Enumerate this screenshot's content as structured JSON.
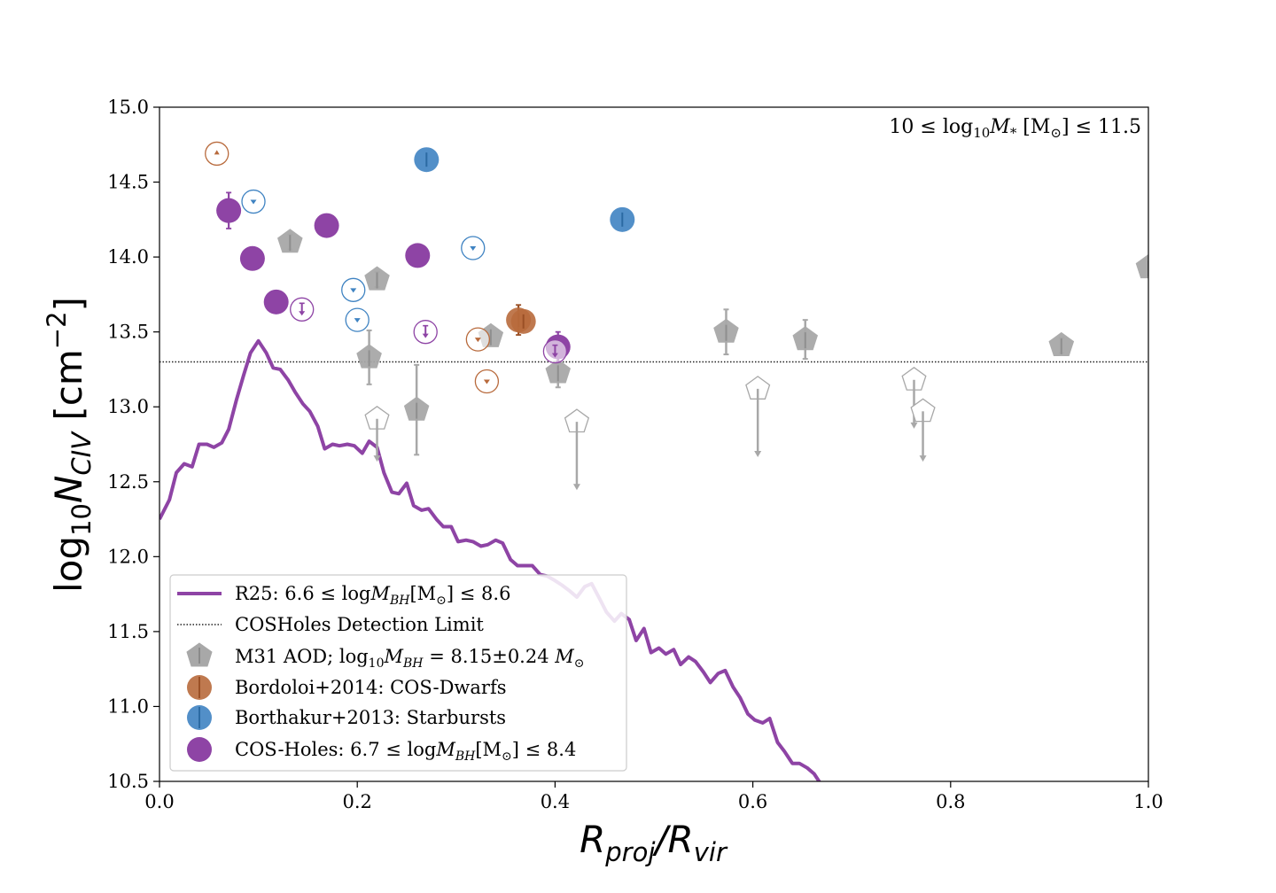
{
  "chart_data": {
    "type": "scatter",
    "xlim": [
      0.0,
      1.0
    ],
    "ylim": [
      10.5,
      15.0
    ],
    "x_ticks": [
      "0.0",
      "0.2",
      "0.4",
      "0.6",
      "0.8",
      "1.0"
    ],
    "y_ticks": [
      "10.5",
      "11.0",
      "11.5",
      "12.0",
      "12.5",
      "13.0",
      "13.5",
      "14.0",
      "14.5",
      "15.0"
    ],
    "xlabel_main": "R",
    "xlabel_sub1": "proj",
    "xlabel_mid": "/R",
    "xlabel_sub2": "vir",
    "ylabel_main": "log",
    "ylabel_sub1": "10",
    "ylabel_mid": "N",
    "ylabel_sub2": "CIV",
    "ylabel_unit": " [cm",
    "ylabel_sup": "−2",
    "ylabel_end": "]",
    "annotation": {
      "pre": "10  ≤  log",
      "sub1": "10",
      "mid": "M",
      "sub2": "*",
      "unit": " [M",
      "sub3": "⊙",
      "post": "]  ≤  11.5"
    },
    "detection_limit": 13.3,
    "colors": {
      "purple": "#8e44a5",
      "orange": "#b86a3c",
      "blue": "#3f83c2",
      "gray": "#a8a8a8"
    },
    "legend": {
      "placement": "lower-left",
      "entries": [
        {
          "pre": "R25: 6.6  ≤  log",
          "mid": "M",
          "sub": "BH",
          "unit": "[M",
          "sub2": "⊙",
          "post": "]  ≤  8.6"
        },
        {
          "pre": "COSHoles Detection Limit"
        },
        {
          "pre": "M31 AOD; log",
          "sub0": "10",
          "mid": "M",
          "sub": "BH",
          "post": " = 8.15±0.24 ",
          "mid2": "M",
          "sub2": "⊙"
        },
        {
          "pre": "Bordoloi+2014: COS-Dwarfs"
        },
        {
          "pre": "Borthakur+2013: Starbursts"
        },
        {
          "pre": "COS-Holes: 6.7  ≤  log",
          "mid": "M",
          "sub": "BH",
          "unit": "[M",
          "sub2": "⊙",
          "post": "]  ≤  8.4"
        }
      ]
    },
    "series": [
      {
        "name": "R25: 6.6 ≤ logM_BH[M⊙] ≤ 8.6",
        "kind": "line",
        "color": "#8e44a5",
        "points": [
          [
            0.0,
            12.25
          ],
          [
            0.01,
            12.38
          ],
          [
            0.017,
            12.56
          ],
          [
            0.025,
            12.62
          ],
          [
            0.033,
            12.6
          ],
          [
            0.04,
            12.75
          ],
          [
            0.048,
            12.75
          ],
          [
            0.055,
            12.73
          ],
          [
            0.063,
            12.76
          ],
          [
            0.07,
            12.85
          ],
          [
            0.078,
            13.05
          ],
          [
            0.085,
            13.21
          ],
          [
            0.092,
            13.36
          ],
          [
            0.1,
            13.44
          ],
          [
            0.108,
            13.36
          ],
          [
            0.115,
            13.26
          ],
          [
            0.122,
            13.25
          ],
          [
            0.13,
            13.18
          ],
          [
            0.137,
            13.1
          ],
          [
            0.145,
            13.02
          ],
          [
            0.152,
            12.97
          ],
          [
            0.16,
            12.87
          ],
          [
            0.167,
            12.72
          ],
          [
            0.175,
            12.75
          ],
          [
            0.182,
            12.74
          ],
          [
            0.19,
            12.75
          ],
          [
            0.197,
            12.74
          ],
          [
            0.205,
            12.69
          ],
          [
            0.212,
            12.77
          ],
          [
            0.22,
            12.73
          ],
          [
            0.227,
            12.56
          ],
          [
            0.235,
            12.43
          ],
          [
            0.242,
            12.42
          ],
          [
            0.25,
            12.49
          ],
          [
            0.257,
            12.34
          ],
          [
            0.265,
            12.31
          ],
          [
            0.272,
            12.32
          ],
          [
            0.28,
            12.25
          ],
          [
            0.287,
            12.2
          ],
          [
            0.295,
            12.2
          ],
          [
            0.302,
            12.1
          ],
          [
            0.31,
            12.11
          ],
          [
            0.317,
            12.1
          ],
          [
            0.325,
            12.07
          ],
          [
            0.332,
            12.08
          ],
          [
            0.34,
            12.11
          ],
          [
            0.347,
            12.09
          ],
          [
            0.355,
            11.98
          ],
          [
            0.362,
            11.94
          ],
          [
            0.37,
            11.94
          ],
          [
            0.377,
            11.94
          ],
          [
            0.385,
            11.88
          ],
          [
            0.392,
            11.87
          ],
          [
            0.4,
            11.84
          ],
          [
            0.407,
            11.81
          ],
          [
            0.415,
            11.77
          ],
          [
            0.422,
            11.73
          ],
          [
            0.43,
            11.8
          ],
          [
            0.437,
            11.82
          ],
          [
            0.445,
            11.72
          ],
          [
            0.452,
            11.63
          ],
          [
            0.46,
            11.57
          ],
          [
            0.467,
            11.62
          ],
          [
            0.475,
            11.58
          ],
          [
            0.482,
            11.44
          ],
          [
            0.49,
            11.52
          ],
          [
            0.497,
            11.36
          ],
          [
            0.505,
            11.39
          ],
          [
            0.512,
            11.35
          ],
          [
            0.52,
            11.38
          ],
          [
            0.527,
            11.28
          ],
          [
            0.535,
            11.33
          ],
          [
            0.542,
            11.3
          ],
          [
            0.55,
            11.23
          ],
          [
            0.557,
            11.16
          ],
          [
            0.565,
            11.22
          ],
          [
            0.572,
            11.24
          ],
          [
            0.58,
            11.13
          ],
          [
            0.587,
            11.06
          ],
          [
            0.595,
            10.95
          ],
          [
            0.602,
            10.91
          ],
          [
            0.61,
            10.89
          ],
          [
            0.617,
            10.92
          ],
          [
            0.625,
            10.76
          ],
          [
            0.632,
            10.7
          ],
          [
            0.64,
            10.62
          ],
          [
            0.647,
            10.62
          ],
          [
            0.655,
            10.59
          ],
          [
            0.662,
            10.55
          ],
          [
            0.67,
            10.47
          ]
        ]
      },
      {
        "name": "M31 AOD; log10 M_BH = 8.15±0.24 M⊙",
        "kind": "pentagon",
        "color": "#a8a8a8",
        "points": [
          {
            "x": 0.132,
            "y": 14.1,
            "err": 0.05
          },
          {
            "x": 0.22,
            "y": 13.85,
            "err": 0.05
          },
          {
            "x": 0.212,
            "y": 13.33,
            "err": 0.18
          },
          {
            "x": 0.26,
            "y": 12.98,
            "err": 0.3
          },
          {
            "x": 0.335,
            "y": 13.47,
            "err": 0.0
          },
          {
            "x": 0.403,
            "y": 13.23,
            "err": 0.1
          },
          {
            "x": 0.573,
            "y": 13.5,
            "err": 0.15
          },
          {
            "x": 0.653,
            "y": 13.45,
            "err": 0.13
          },
          {
            "x": 0.912,
            "y": 13.41,
            "err": 0.05
          },
          {
            "x": 1.0,
            "y": 13.93,
            "err": 0.0
          },
          {
            "x": 0.22,
            "y": 12.92,
            "open": true,
            "arrow": 0.28
          },
          {
            "x": 0.422,
            "y": 12.9,
            "open": true,
            "arrow": 0.45
          },
          {
            "x": 0.605,
            "y": 13.12,
            "open": true,
            "arrow": 0.45
          },
          {
            "x": 0.763,
            "y": 13.18,
            "open": true,
            "arrow": 0.32
          },
          {
            "x": 0.772,
            "y": 12.97,
            "open": true,
            "arrow": 0.33
          }
        ]
      },
      {
        "name": "Bordoloi+2014: COS-Dwarfs",
        "kind": "circle",
        "color": "#b86a3c",
        "points": [
          {
            "x": 0.058,
            "y": 14.69,
            "open": true,
            "limit": "lower"
          },
          {
            "x": 0.322,
            "y": 13.45,
            "open": true,
            "limit": "upper"
          },
          {
            "x": 0.331,
            "y": 13.17,
            "open": true,
            "limit": "upper"
          },
          {
            "x": 0.363,
            "y": 13.58,
            "err": 0.1
          },
          {
            "x": 0.368,
            "y": 13.57,
            "err": 0.05
          }
        ]
      },
      {
        "name": "Borthakur+2013: Starbursts",
        "kind": "circle",
        "color": "#3f83c2",
        "points": [
          {
            "x": 0.27,
            "y": 14.65,
            "err": 0.05
          },
          {
            "x": 0.468,
            "y": 14.25,
            "err": 0.06
          },
          {
            "x": 0.095,
            "y": 14.37,
            "open": true,
            "limit": "upper"
          },
          {
            "x": 0.317,
            "y": 14.06,
            "open": true,
            "limit": "upper"
          },
          {
            "x": 0.196,
            "y": 13.78,
            "open": true,
            "limit": "upper"
          },
          {
            "x": 0.2,
            "y": 13.58,
            "open": true,
            "limit": "upper"
          }
        ]
      },
      {
        "name": "COS-Holes: 6.7 ≤ logM_BH[M⊙] ≤ 8.4",
        "kind": "circle",
        "color": "#8e44a5",
        "points": [
          {
            "x": 0.07,
            "y": 14.31,
            "err": 0.12
          },
          {
            "x": 0.094,
            "y": 13.99,
            "err": 0.0
          },
          {
            "x": 0.118,
            "y": 13.7,
            "err": 0.0
          },
          {
            "x": 0.169,
            "y": 14.21,
            "err": 0.0
          },
          {
            "x": 0.261,
            "y": 14.01,
            "err": 0.0
          },
          {
            "x": 0.403,
            "y": 13.4,
            "err": 0.1
          },
          {
            "x": 0.4,
            "y": 13.37,
            "open": true,
            "limit": "upper"
          },
          {
            "x": 0.144,
            "y": 13.65,
            "open": true,
            "limit": "upper"
          },
          {
            "x": 0.269,
            "y": 13.5,
            "open": true,
            "limit": "upper"
          }
        ]
      }
    ]
  }
}
